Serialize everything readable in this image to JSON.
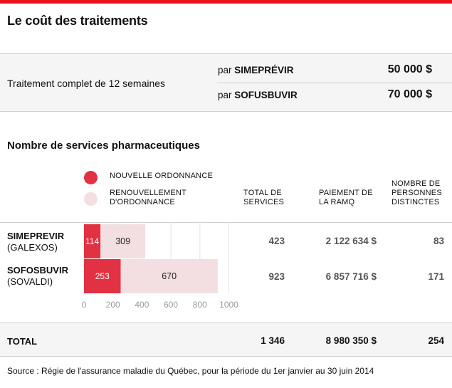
{
  "title": "Le coût des traitements",
  "cost": {
    "label": "Traitement complet de 12 semaines",
    "rows": [
      {
        "prefix": "par ",
        "drug": "SIMEPRÉVIR",
        "price": "50 000 $"
      },
      {
        "prefix": "par ",
        "drug": "SOFUSBUVIR",
        "price": "70 000 $"
      }
    ]
  },
  "subtitle": "Nombre de services pharmaceutiques",
  "legend": {
    "new": "NOUVELLE ORDONNANCE",
    "renew_line1": "RENOUVELLEMENT",
    "renew_line2": "D'ORDONNANCE"
  },
  "columns": {
    "total": [
      "TOTAL DE",
      "SERVICES"
    ],
    "payment": [
      "PAIEMENT DE",
      "LA RAMQ"
    ],
    "persons": [
      "NOMBRE DE",
      "PERSONNES",
      "DISTINCTES"
    ]
  },
  "rows": [
    {
      "name": "SIMEPREVIR",
      "brand": "(GALEXOS)",
      "total": "423",
      "payment": "2 122 634 $",
      "persons": "83"
    },
    {
      "name": "SOFOSBUVIR",
      "brand": "(SOVALDI)",
      "total": "923",
      "payment": "6 857 716 $",
      "persons": "171"
    }
  ],
  "totals": {
    "label": "TOTAL",
    "services": "1 346",
    "payment": "8 980 350 $",
    "persons": "254"
  },
  "source": "Source : Régie de l'assurance maladie du Québec, pour la période du 1er janvier au 30 juin 2014",
  "colors": {
    "accent": "#e8121d",
    "new": "#e23142",
    "renew": "#f3dfe1"
  },
  "chart_data": {
    "type": "bar",
    "orientation": "horizontal",
    "stacked": true,
    "categories": [
      "SIMEPREVIR",
      "SOFOSBUVIR"
    ],
    "series": [
      {
        "name": "NOUVELLE ORDONNANCE",
        "values": [
          114,
          253
        ],
        "color": "#e23142"
      },
      {
        "name": "RENOUVELLEMENT D'ORDONNANCE",
        "values": [
          309,
          670
        ],
        "color": "#f3dfe1"
      }
    ],
    "xlim": [
      0,
      1000
    ],
    "xticks": [
      0,
      200,
      400,
      600,
      800,
      1000
    ],
    "grid": true
  }
}
